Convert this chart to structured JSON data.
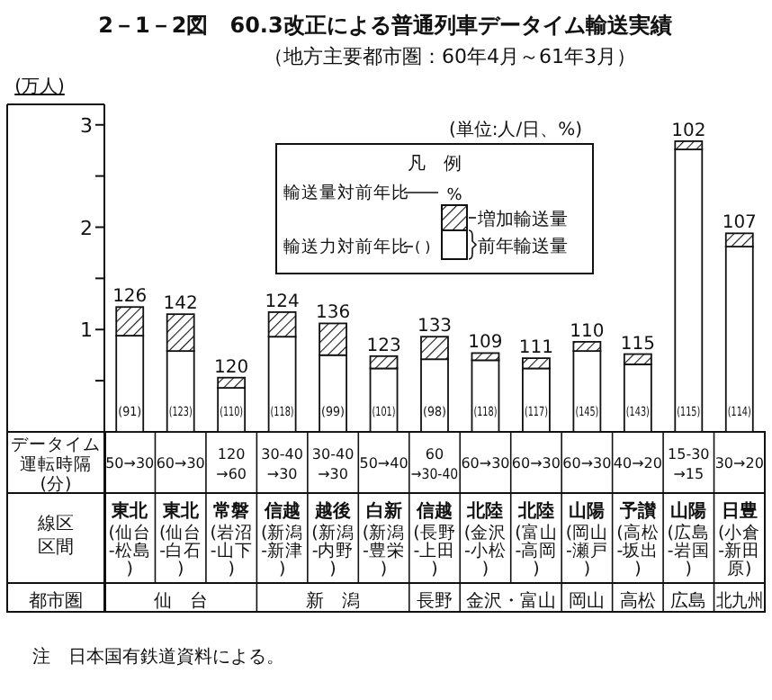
{
  "chart_data": {
    "type": "bar",
    "stacked": true,
    "title": "2－1－2図　60.3改正による普通列車データイム輸送実績",
    "subtitle": "（地方主要都市圏：60年4月～61年3月）",
    "ylabel": "(万人)",
    "legend_title": "凡　例",
    "legend": "top",
    "categories": [
      "東北\n(仙台-松島)",
      "東北\n(仙台-白石)",
      "常磐\n(岩沼-山下)",
      "信越\n(新潟-新津)",
      "越後\n(新潟-内野)",
      "白新\n(新潟-豊栄)",
      "信越\n(長野-上田)",
      "北陸\n(金沢-小松)",
      "北陸\n(富山-高岡)",
      "山陽\n(岡山-瀬戸)",
      "予讃\n(高松-坂出)",
      "山陽\n(広島-岩国)",
      "日豊\n(小倉-新田原)"
    ],
    "series": [
      {
        "name": "前年輸送量",
        "color": "#ffffff",
        "values": [
          0.94,
          0.79,
          0.43,
          0.93,
          0.75,
          0.62,
          0.71,
          0.7,
          0.62,
          0.79,
          0.66,
          2.76,
          1.81
        ]
      },
      {
        "name": "増加輸送量",
        "color": "#111111",
        "values": [
          0.28,
          0.36,
          0.1,
          0.24,
          0.31,
          0.12,
          0.22,
          0.07,
          0.1,
          0.09,
          0.1,
          0.08,
          0.13
        ]
      }
    ],
    "ylim": [
      0,
      3.2
    ],
    "yticks": [
      {
        "value": 0.5,
        "label": null
      },
      1,
      {
        "value": 1.5,
        "label": null
      },
      2,
      {
        "value": 2.5,
        "label": null
      },
      3
    ],
    "annotations": [
      "(単位:人/日、%)",
      "輸送量対前年比",
      "%",
      "輸送力対前年比",
      "( )",
      "データイム運転時隔(分)",
      "線区区間",
      "都市圏",
      "注　日本国有鉄道資料による。",
      "50→30",
      "60→30",
      "120→60",
      "30-40→30",
      "30-40→30",
      "50→40",
      "60→30-40",
      "60→30",
      "60→30",
      "60→30",
      "40→20",
      "15-30→15",
      "30→20",
      "仙　台",
      "新　潟",
      "長野",
      "金沢・富山",
      "岡山",
      "高松",
      "広島",
      "北九州",
      "(91)",
      "(123)",
      "(110)",
      "(118)",
      "(99)",
      "(101)",
      "(98)",
      "(118)",
      "(117)",
      "(145)",
      "(143)",
      "(115)",
      "(114)",
      "126",
      "142",
      "120",
      "124",
      "136",
      "123",
      "133",
      "109",
      "111",
      "110",
      "115",
      "102",
      "107"
    ]
  }
}
